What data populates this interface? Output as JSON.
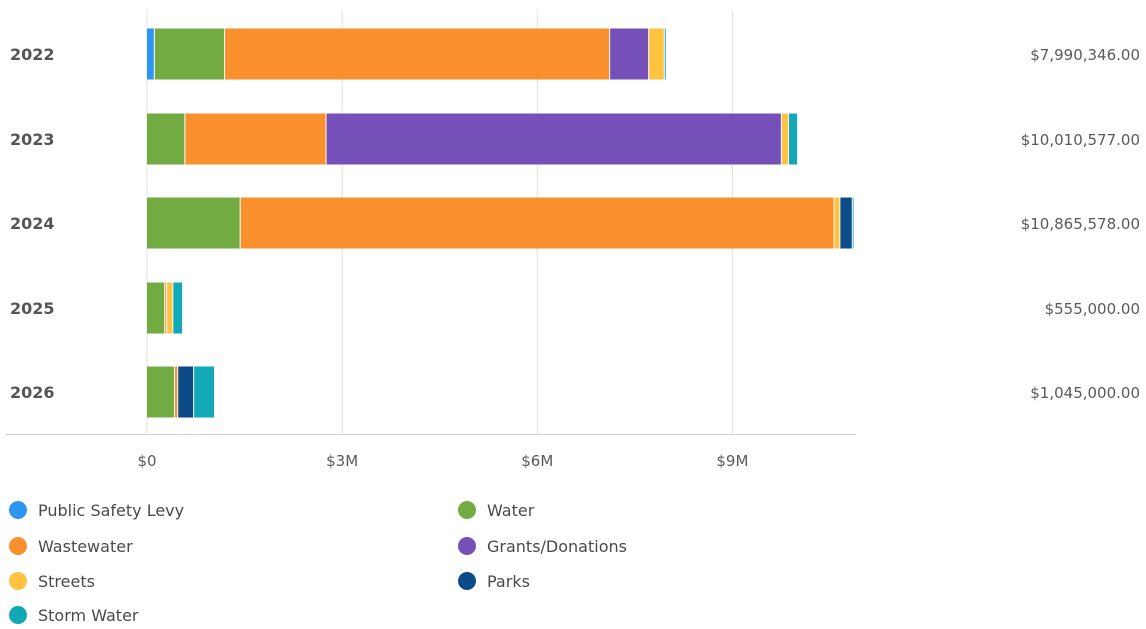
{
  "chart_data": {
    "type": "bar",
    "orientation": "horizontal",
    "stacked": true,
    "title": "",
    "xlabel": "",
    "ylabel": "",
    "categories": [
      "2022",
      "2023",
      "2024",
      "2025",
      "2026"
    ],
    "totals": [
      "$7,990,346.00",
      "$10,010,577.00",
      "$10,865,578.00",
      "$555,000.00",
      "$1,045,000.00"
    ],
    "xlim": [
      0,
      10900000
    ],
    "x_ticks": [
      0,
      3000000,
      6000000,
      9000000
    ],
    "x_tick_labels": [
      "$0",
      "$3M",
      "$6M",
      "$9M"
    ],
    "grid": "vertical",
    "legend_position": "bottom",
    "series": [
      {
        "name": "Public Safety Levy",
        "color": "#2f96f0",
        "values": [
          120000,
          0,
          0,
          0,
          0
        ]
      },
      {
        "name": "Water",
        "color": "#72ab41",
        "values": [
          1080000,
          590000,
          1440000,
          280000,
          430000
        ]
      },
      {
        "name": "Wastewater",
        "color": "#fa8f2d",
        "values": [
          5920000,
          2170000,
          9130000,
          30000,
          50000
        ]
      },
      {
        "name": "Grants/Donations",
        "color": "#7450b8",
        "values": [
          600000,
          7000000,
          0,
          0,
          0
        ]
      },
      {
        "name": "Streets",
        "color": "#fec341",
        "values": [
          240000,
          110000,
          90000,
          95000,
          0
        ]
      },
      {
        "name": "Parks",
        "color": "#0c4b88",
        "values": [
          0,
          0,
          190000,
          0,
          245000
        ]
      },
      {
        "name": "Storm Water",
        "color": "#12a8b5",
        "values": [
          30346,
          140577,
          15578,
          150000,
          320000
        ]
      }
    ]
  }
}
